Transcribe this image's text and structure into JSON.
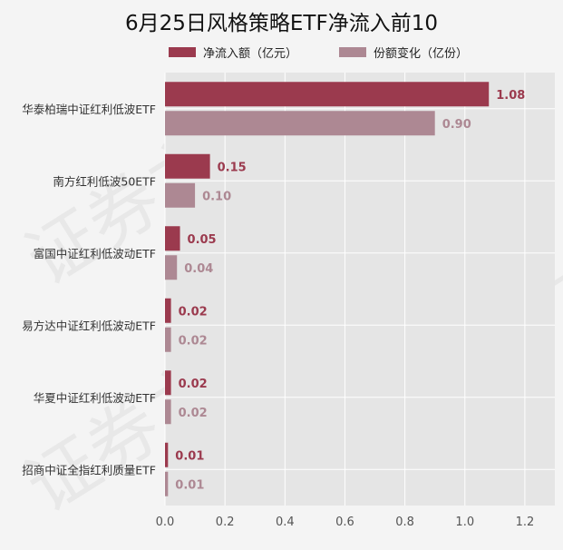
{
  "chart_data": {
    "type": "bar",
    "orientation": "horizontal",
    "title": "6月25日风格策略ETF净流入前10",
    "categories": [
      "华泰柏瑞中证红利低波ETF",
      "南方红利低波50ETF",
      "富国中证红利低波动ETF",
      "易方达中证红利低波动ETF",
      "华夏中证红利低波动ETF",
      "招商中证全指红利质量ETF"
    ],
    "series": [
      {
        "name": "净流入额（亿元）",
        "values": [
          1.08,
          0.15,
          0.05,
          0.02,
          0.02,
          0.01
        ],
        "labels": [
          "1.08",
          "0.15",
          "0.05",
          "0.02",
          "0.02",
          "0.01"
        ],
        "color": "#9b3a4e"
      },
      {
        "name": "份额变化（亿份）",
        "values": [
          0.9,
          0.1,
          0.04,
          0.02,
          0.02,
          0.01
        ],
        "labels": [
          "0.90",
          "0.10",
          "0.04",
          "0.02",
          "0.02",
          "0.01"
        ],
        "color": "#ad8893"
      }
    ],
    "xticks": [
      "0.0",
      "0.2",
      "0.4",
      "0.6",
      "0.8",
      "1.0",
      "1.2"
    ],
    "xlim": [
      0,
      1.3
    ],
    "grid": true,
    "legend_position": "top",
    "plot_background": "#e5e5e5",
    "watermark": "证券之星"
  }
}
